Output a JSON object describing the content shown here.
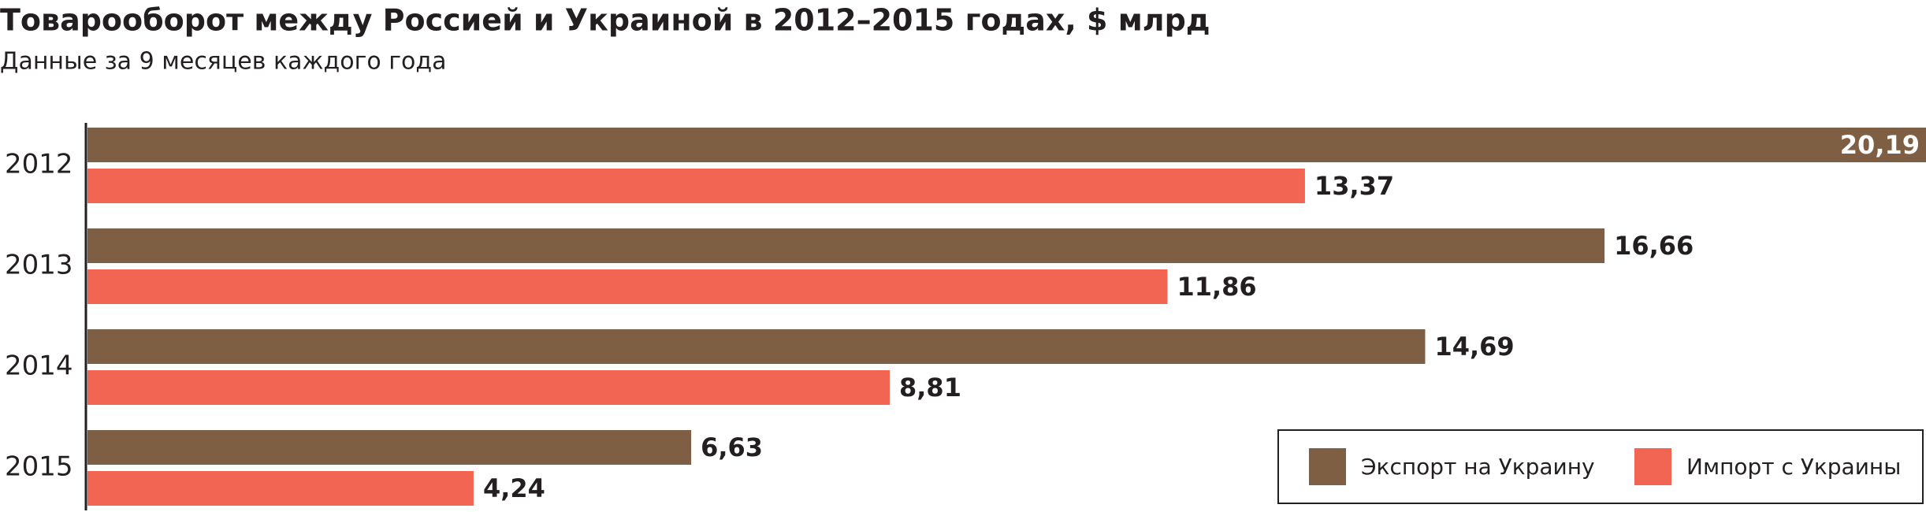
{
  "chart_data": {
    "type": "barh",
    "title": "Товарооборот между Россией и Украиной в 2012–2015 годах, $ млрд",
    "subtitle": "Данные за 9 месяцев каждого года",
    "categories": [
      "2012",
      "2013",
      "2014",
      "2015"
    ],
    "series": [
      {
        "name": "Экспорт на Украину",
        "color": "#7f5f44",
        "values": [
          20.19,
          16.66,
          14.69,
          6.63
        ],
        "value_labels": [
          "20,19",
          "16,66",
          "14,69",
          "6,63"
        ]
      },
      {
        "name": "Импорт с Украины",
        "color": "#f26552",
        "values": [
          13.37,
          11.86,
          8.81,
          4.24
        ],
        "value_labels": [
          "13,37",
          "11,86",
          "8,81",
          "4,24"
        ]
      }
    ],
    "legend": "lower right"
  }
}
